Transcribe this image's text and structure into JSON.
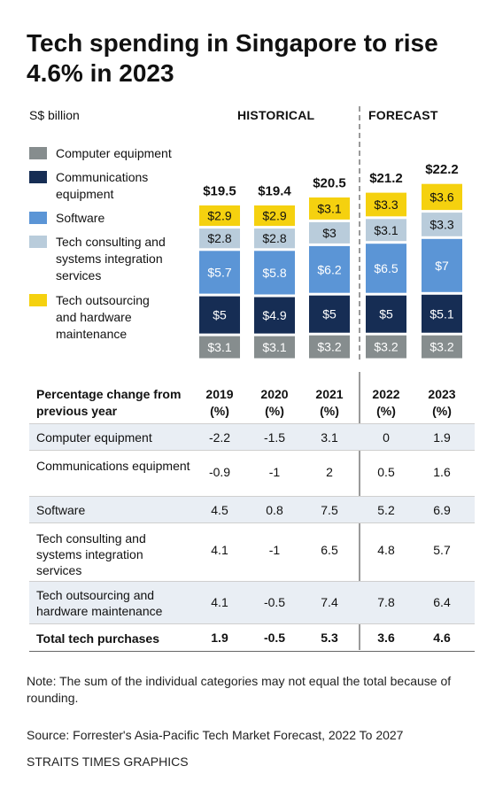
{
  "title": "Tech spending in Singapore to rise 4.6% in 2023",
  "unit": "S$ billion",
  "headers": {
    "historical": "HISTORICAL",
    "forecast": "FORECAST"
  },
  "legend": [
    {
      "label": "Computer equipment",
      "color": "#868d8e"
    },
    {
      "label": "Communications equipment",
      "color": "#162d54"
    },
    {
      "label": "Software",
      "color": "#5b95d6"
    },
    {
      "label": "Tech consulting and systems integration services",
      "color": "#b9ccdb"
    },
    {
      "label": "Tech outsourcing and hardware maintenance",
      "color": "#f5d10f"
    }
  ],
  "chart_data": {
    "type": "bar",
    "stacked": true,
    "categories": [
      "2019",
      "2020",
      "2021",
      "2022",
      "2023"
    ],
    "totals": [
      "$19.5",
      "$19.4",
      "$20.5",
      "$21.2",
      "$22.2"
    ],
    "series": [
      {
        "name": "Computer equipment",
        "color": "#868d8e",
        "values": [
          3.1,
          3.1,
          3.2,
          3.2,
          3.2
        ],
        "labels": [
          "$3.1",
          "$3.1",
          "$3.2",
          "$3.2",
          "$3.2"
        ]
      },
      {
        "name": "Communications equipment",
        "color": "#162d54",
        "values": [
          5,
          4.9,
          5,
          5,
          5.1
        ],
        "labels": [
          "$5",
          "$4.9",
          "$5",
          "$5",
          "$5.1"
        ]
      },
      {
        "name": "Software",
        "color": "#5b95d6",
        "values": [
          5.7,
          5.8,
          6.2,
          6.5,
          7
        ],
        "labels": [
          "$5.7",
          "$5.8",
          "$6.2",
          "$6.5",
          "$7"
        ]
      },
      {
        "name": "Tech consulting and systems integration services",
        "color": "#b9ccdb",
        "values": [
          2.8,
          2.8,
          3,
          3.1,
          3.3
        ],
        "labels": [
          "$2.8",
          "$2.8",
          "$3",
          "$3.1",
          "$3.3"
        ]
      },
      {
        "name": "Tech outsourcing and hardware maintenance",
        "color": "#f5d10f",
        "values": [
          2.9,
          2.9,
          3.1,
          3.3,
          3.6
        ],
        "labels": [
          "$2.9",
          "$2.9",
          "$3.1",
          "$3.3",
          "$3.6"
        ]
      }
    ]
  },
  "table": {
    "header_label": "Percentage change from previous year",
    "columns": [
      "2019 (%)",
      "2020 (%)",
      "2021 (%)",
      "2022 (%)",
      "2023 (%)"
    ],
    "rows": [
      {
        "label": "Computer equipment",
        "values": [
          "-2.2",
          "-1.5",
          "3.1",
          "0",
          "1.9"
        ]
      },
      {
        "label": "Communications equipment",
        "values": [
          "-0.9",
          "-1",
          "2",
          "0.5",
          "1.6"
        ]
      },
      {
        "label": "Software",
        "values": [
          "4.5",
          "0.8",
          "7.5",
          "5.2",
          "6.9"
        ]
      },
      {
        "label": "Tech consulting and systems integration services",
        "values": [
          "4.1",
          "-1",
          "6.5",
          "4.8",
          "5.7"
        ]
      },
      {
        "label": "Tech outsourcing and hardware maintenance",
        "values": [
          "4.1",
          "-0.5",
          "7.4",
          "7.8",
          "6.4"
        ]
      }
    ],
    "total": {
      "label": "Total tech purchases",
      "values": [
        "1.9",
        "-0.5",
        "5.3",
        "3.6",
        "4.6"
      ]
    }
  },
  "note": "Note: The sum of the individual categories may not equal the total because of rounding.",
  "source": "Source: Forrester's Asia-Pacific Tech Market Forecast, 2022 To 2027",
  "credit": "STRAITS TIMES GRAPHICS"
}
